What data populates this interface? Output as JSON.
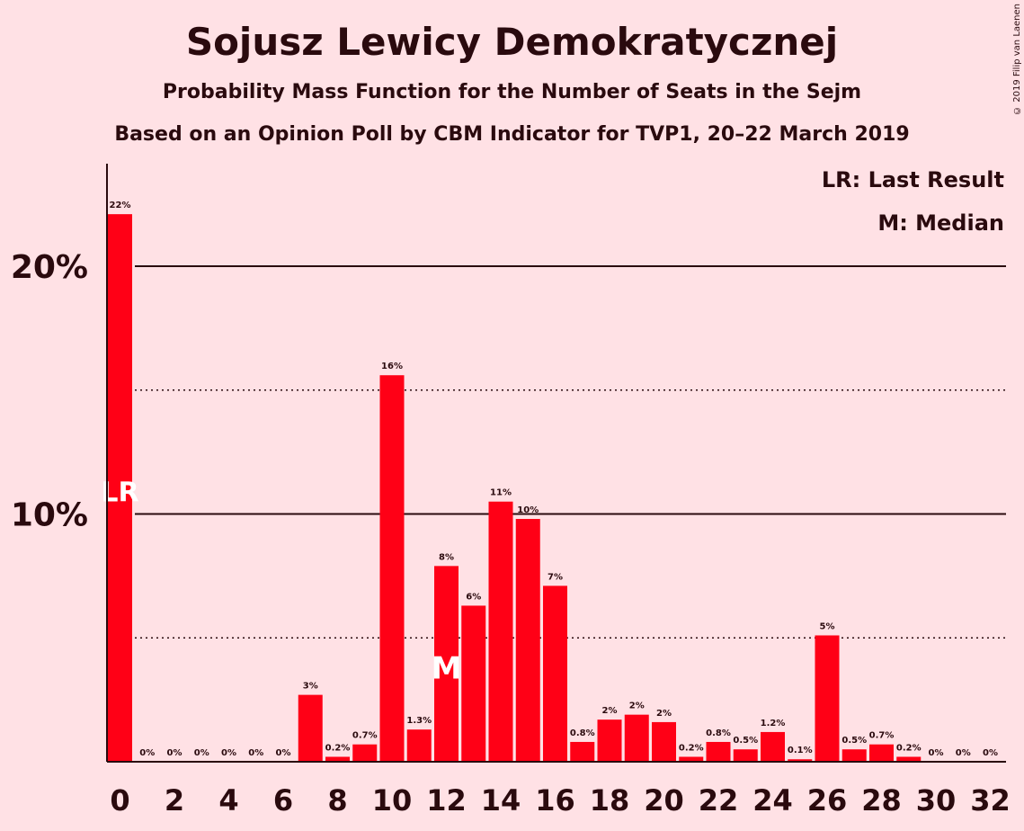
{
  "title": "Sojusz Lewicy Demokratycznej",
  "subtitle1": "Probability Mass Function for the Number of Seats in the Sejm",
  "subtitle2": "Based on an Opinion Poll by CBM Indicator for TVP1, 20–22 March 2019",
  "copyright": "© 2019 Filip van Laenen",
  "legend": {
    "lr": "LR: Last Result",
    "median": "M: Median"
  },
  "colors": {
    "bar": "#ff0016",
    "background": "#ffe1e5",
    "text": "#2a0a0e"
  },
  "chart_data": {
    "type": "bar",
    "x": [
      0,
      1,
      2,
      3,
      4,
      5,
      6,
      7,
      8,
      9,
      10,
      11,
      12,
      13,
      14,
      15,
      16,
      17,
      18,
      19,
      20,
      21,
      22,
      23,
      24,
      25,
      26,
      27,
      28,
      29,
      30,
      31,
      32
    ],
    "values": [
      22.1,
      0,
      0,
      0,
      0,
      0,
      0,
      2.7,
      0.2,
      0.7,
      15.6,
      1.3,
      7.9,
      6.3,
      10.5,
      9.8,
      7.1,
      0.8,
      1.7,
      1.9,
      1.6,
      0.2,
      0.8,
      0.5,
      1.2,
      0.1,
      5.1,
      0.5,
      0.7,
      0.2,
      0,
      0,
      0
    ],
    "labels": [
      "22%",
      "0%",
      "0%",
      "0%",
      "0%",
      "0%",
      "0%",
      "3%",
      "0.2%",
      "0.7%",
      "16%",
      "1.3%",
      "8%",
      "6%",
      "11%",
      "10%",
      "7%",
      "0.8%",
      "2%",
      "2%",
      "2%",
      "0.2%",
      "0.8%",
      "0.5%",
      "1.2%",
      "0.1%",
      "5%",
      "0.5%",
      "0.7%",
      "0.2%",
      "0%",
      "0%",
      "0%"
    ],
    "x_ticks": [
      0,
      2,
      4,
      6,
      8,
      10,
      12,
      14,
      16,
      18,
      20,
      22,
      24,
      26,
      28,
      30,
      32
    ],
    "y_ticks": [
      {
        "value": 10,
        "label": "10%"
      },
      {
        "value": 20,
        "label": "20%"
      }
    ],
    "y_gridlines_dotted": [
      5,
      15
    ],
    "ylim": [
      0,
      24
    ],
    "last_result": {
      "seat": 0,
      "label": "LR"
    },
    "median": {
      "seat": 12,
      "label": "M"
    }
  }
}
